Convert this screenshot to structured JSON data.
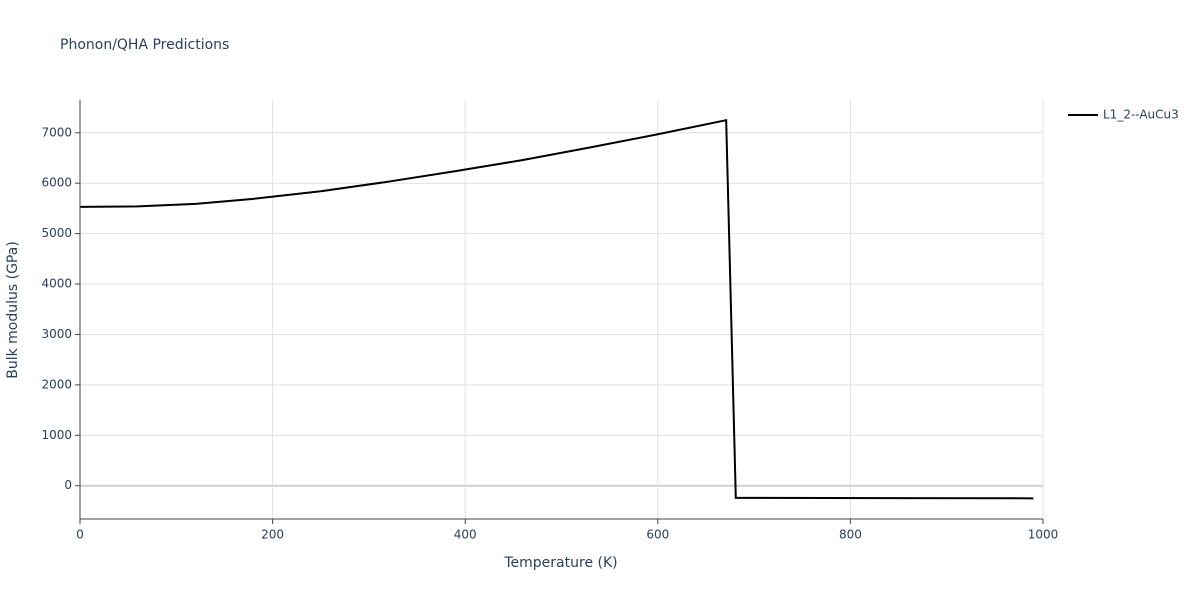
{
  "chart_data": {
    "type": "line",
    "title": "Phonon/QHA Predictions",
    "x_label": "Temperature (K)",
    "y_label": "Bulk modulus (GPa)",
    "x": [
      0,
      60,
      120,
      180,
      250,
      320,
      390,
      460,
      530,
      600,
      671,
      681,
      990
    ],
    "series": [
      {
        "name": "L1_2--AuCu3",
        "color": "#000000",
        "values": [
          5530,
          5540,
          5590,
          5690,
          5840,
          6030,
          6240,
          6460,
          6710,
          6970,
          7250,
          -240,
          -250
        ]
      }
    ],
    "xlim": [
      0,
      1000
    ],
    "xticks": [
      0,
      200,
      400,
      600,
      800,
      1000
    ],
    "ylim": [
      -660,
      7650
    ],
    "yticks": [
      0,
      1000,
      2000,
      3000,
      4000,
      5000,
      6000,
      7000
    ],
    "grid": true,
    "legend": "right"
  }
}
